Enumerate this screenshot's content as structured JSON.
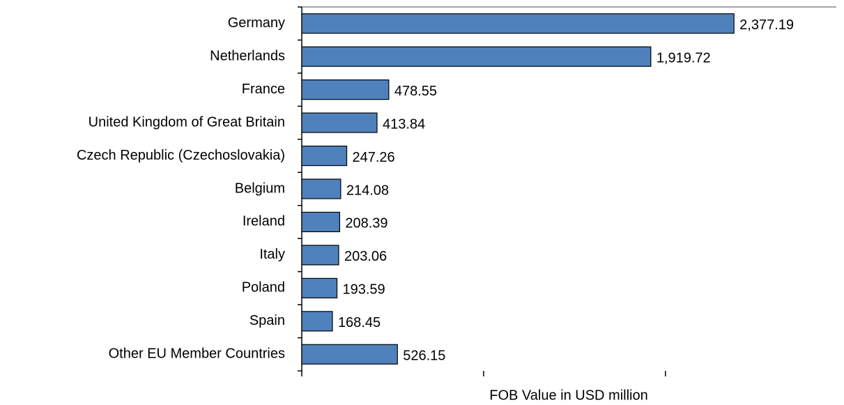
{
  "chart_data": {
    "type": "barh",
    "categories": [
      "Germany",
      "Netherlands",
      "France",
      "United Kingdom of Great Britain",
      "Czech Republic (Czechoslovakia)",
      "Belgium",
      "Ireland",
      "Italy",
      "Poland",
      "Spain",
      "Other EU Member Countries"
    ],
    "values": [
      2377.19,
      1919.72,
      478.55,
      413.84,
      247.26,
      214.08,
      208.39,
      203.06,
      193.59,
      168.45,
      526.15
    ],
    "value_labels": [
      "2,377.19",
      "1,919.72",
      "478.55",
      "413.84",
      "247.26",
      "214.08",
      "208.39",
      "203.06",
      "193.59",
      "168.45",
      "526.15"
    ],
    "color": "#4f81bd",
    "x_label": "FOB Value in USD million",
    "xlim": [
      0,
      2940
    ],
    "xticks": [
      0,
      1000,
      2000
    ]
  }
}
